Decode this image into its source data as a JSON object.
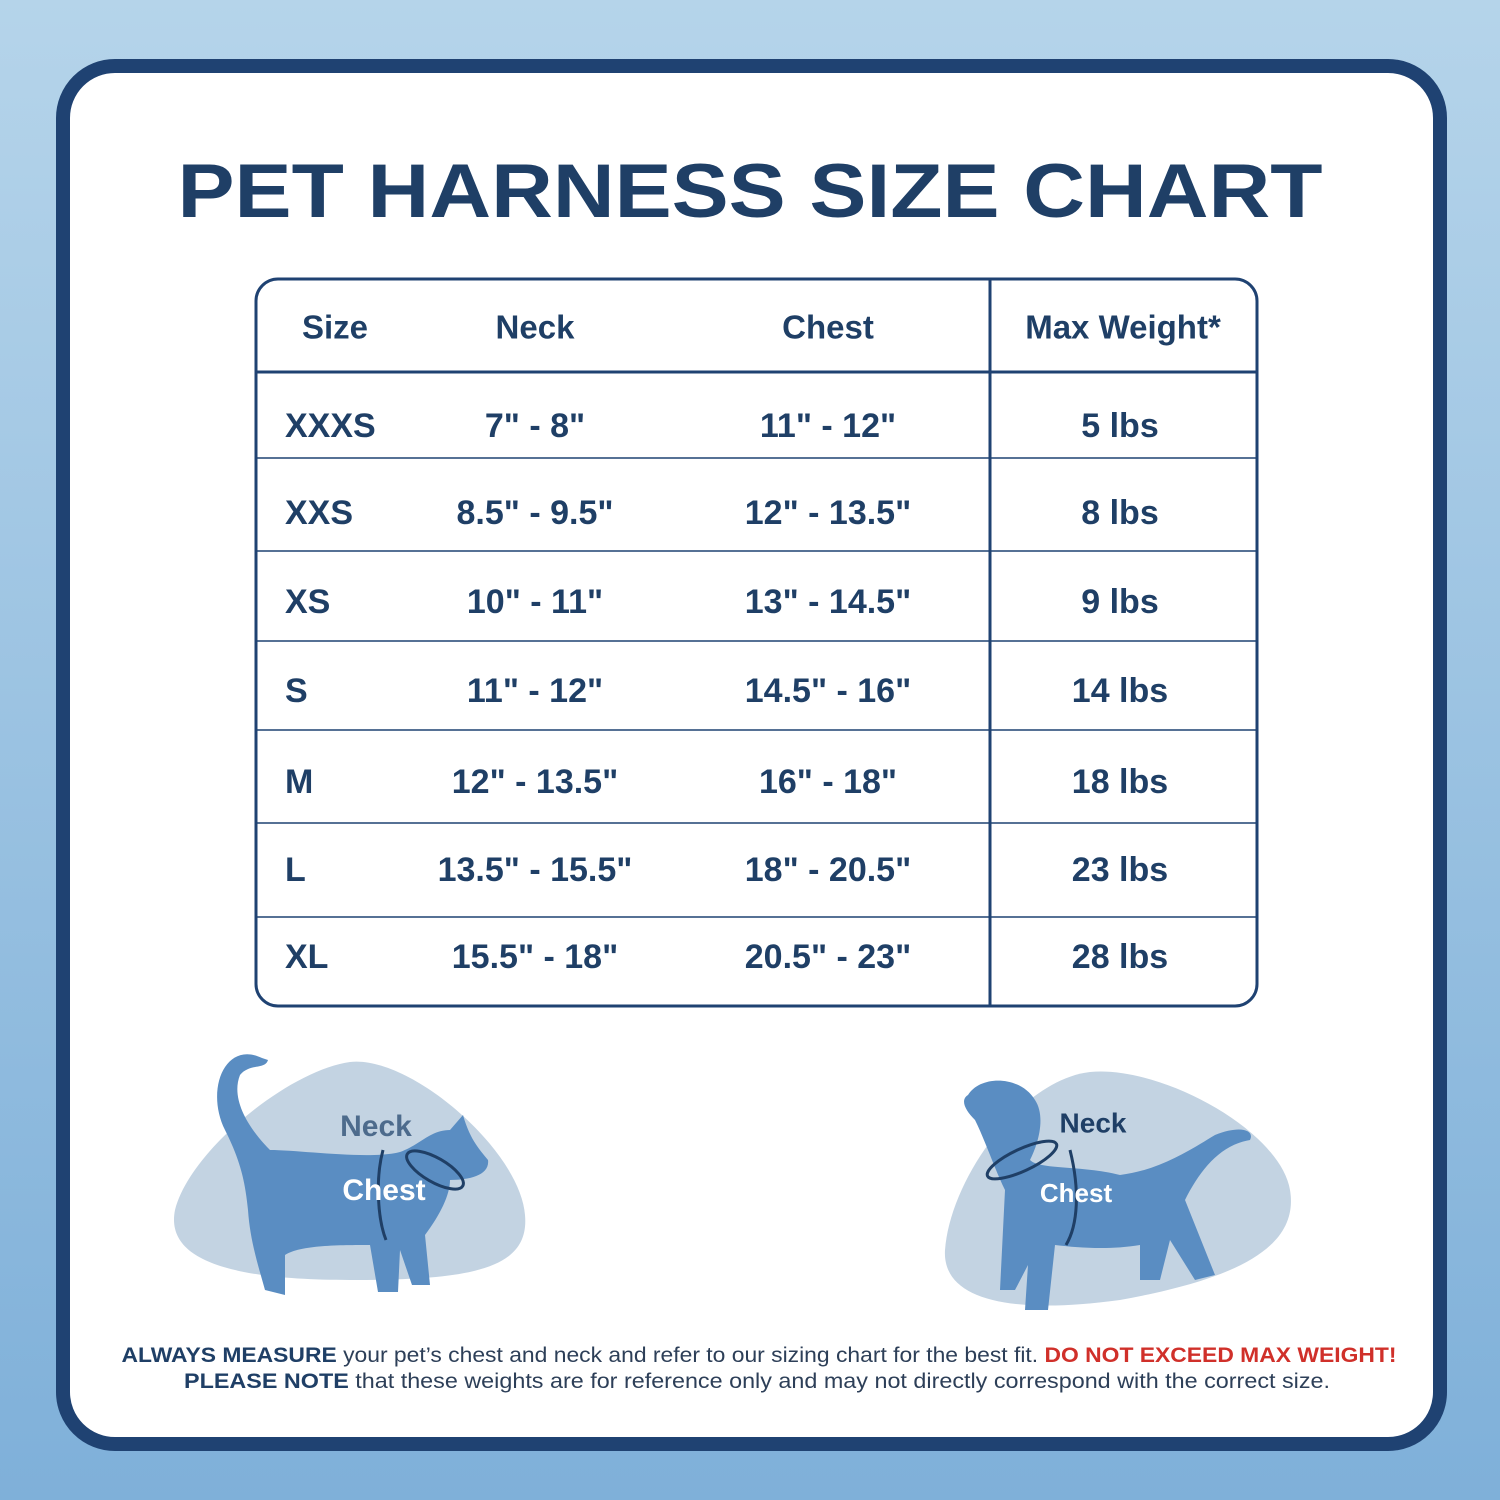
{
  "title": "PET HARNESS SIZE CHART",
  "table": {
    "header": [
      "Size",
      "Neck",
      "Chest",
      "Max Weight*"
    ],
    "rows": [
      [
        "XXXS",
        "7\" - 8\"",
        "11\" - 12\"",
        "5 lbs"
      ],
      [
        "XXS",
        "8.5\" - 9.5\"",
        "12\" - 13.5\"",
        "8 lbs"
      ],
      [
        "XS",
        "10\" - 11\"",
        "13\" - 14.5\"",
        "9 lbs"
      ],
      [
        "S",
        "11\" - 12\"",
        "14.5\" - 16\"",
        "14 lbs"
      ],
      [
        "M",
        "12\" - 13.5\"",
        "16\" - 18\"",
        "18 lbs"
      ],
      [
        "L",
        "13.5\" - 15.5\"",
        "18\" - 20.5\"",
        "23 lbs"
      ],
      [
        "XL",
        "15.5\" - 18\"",
        "20.5\" - 23\"",
        "28 lbs"
      ]
    ]
  },
  "illustrations": {
    "cat": {
      "neck": "Neck",
      "chest": "Chest"
    },
    "dog": {
      "neck": "Neck",
      "chest": "Chest"
    }
  },
  "footer": {
    "line1": [
      "ALWAYS MEASURE",
      " your pet’s chest and neck and refer  to our sizing chart for the best fit. ",
      "DO NOT EXCEED MAX WEIGHT!"
    ],
    "line2": [
      "PLEASE NOTE",
      " that these weights are for reference only and may not directly correspond with the correct size."
    ]
  }
}
